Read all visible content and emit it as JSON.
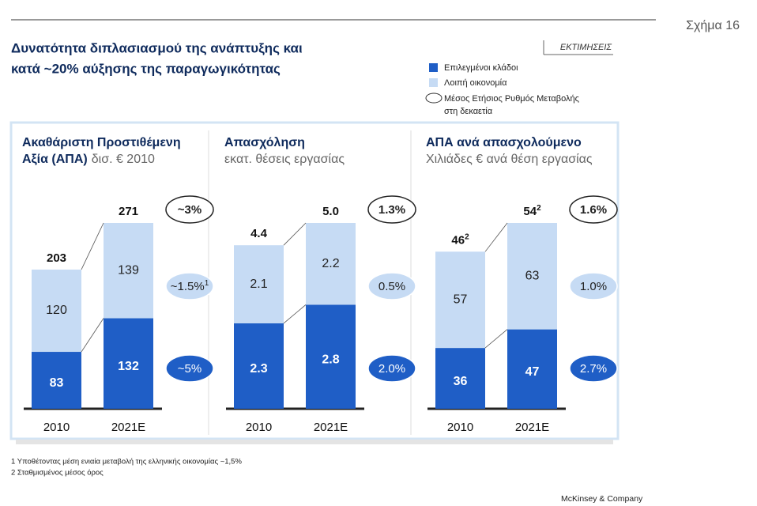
{
  "header": {
    "figure_label": "Σχήμα 16",
    "title_lines": [
      "Δυνατότητα διπλασιασμού της ανάπτυξης και",
      "κατά ~20% αύξησης της παραγωγικότητας"
    ],
    "estimate_tag": "ΕΚΤΙΜΗΣΕΙΣ"
  },
  "legend": {
    "rate_lines": [
      "Μέσος Ετήσιος Ρυθμός Μεταβολής",
      "στη δεκαετία"
    ]
  },
  "chart_data": [
    {
      "type": "bar",
      "title_lines": [
        "Ακαθάριστη Προστιθέμενη",
        "Αξία (ΑΠΑ)"
      ],
      "subtitle": "δισ. € 2010",
      "categories": [
        "2010",
        "2021E"
      ],
      "series": [
        {
          "name": "Επιλεγμένοι κλάδοι",
          "color": "#1f5ec6",
          "values": [
            83,
            132
          ]
        },
        {
          "name": "Λοιπή οικονομία",
          "color": "#c6dbf4",
          "values": [
            120,
            139
          ]
        }
      ],
      "totals": [
        203,
        271
      ],
      "growth": {
        "total": "~3%",
        "rest": "~1.5%",
        "rest_footnote": "1",
        "selected": "~5%"
      }
    },
    {
      "type": "bar",
      "title_lines": [
        "Απασχόληση"
      ],
      "subtitle": "εκατ. θέσεις εργασίας",
      "categories": [
        "2010",
        "2021E"
      ],
      "series": [
        {
          "name": "Επιλεγμένοι κλάδοι",
          "color": "#1f5ec6",
          "values": [
            2.3,
            2.8
          ]
        },
        {
          "name": "Λοιπή οικονομία",
          "color": "#c6dbf4",
          "values": [
            2.1,
            2.2
          ]
        }
      ],
      "totals": [
        4.4,
        5.0
      ],
      "total_labels": [
        "4.4",
        "5.0"
      ],
      "growth": {
        "total": "1.3%",
        "rest": "0.5%",
        "selected": "2.0%"
      }
    },
    {
      "type": "bar",
      "title_lines": [
        "ΑΠΑ ανά απασχολούμενο"
      ],
      "subtitle": "Χιλιάδες € ανά θέση εργασίας",
      "categories": [
        "2010",
        "2021E"
      ],
      "series": [
        {
          "name": "Επιλεγμένοι κλάδοι",
          "color": "#1f5ec6",
          "values": [
            36,
            47
          ]
        },
        {
          "name": "Λοιπή οικονομία",
          "color": "#c6dbf4",
          "values": [
            57,
            63
          ]
        }
      ],
      "totals": [
        46,
        54
      ],
      "total_footnote": "2",
      "growth": {
        "total": "1.6%",
        "rest": "1.0%",
        "selected": "2.7%"
      }
    }
  ],
  "footnotes": [
    "1 Υποθέτοντας μέση ενιαία μεταβολή της ελληνικής οικονομίας ~1,5%",
    "2 Σταθμισμένος μέσος όρος"
  ],
  "footer": "McKinsey & Company"
}
